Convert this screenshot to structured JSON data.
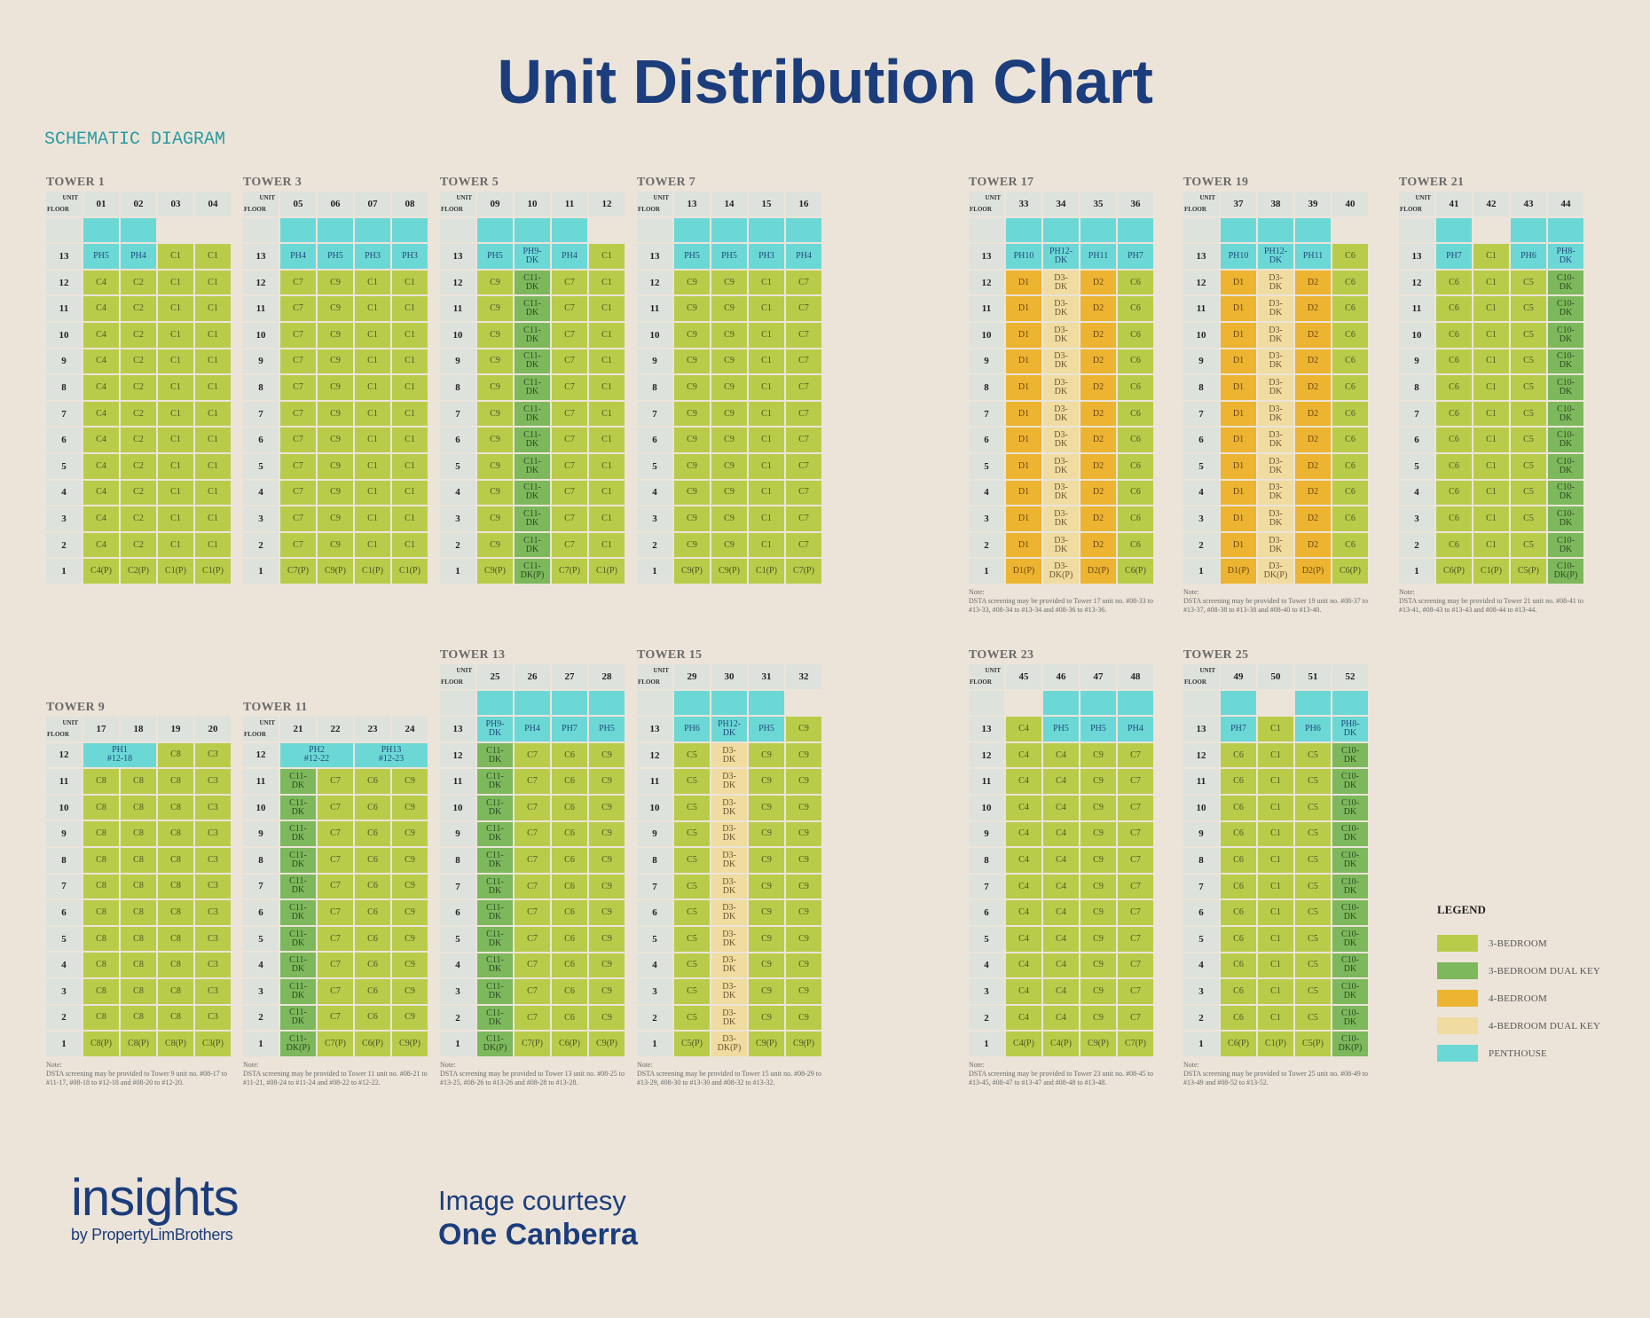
{
  "title": "Unit Distribution Chart",
  "subtitle": "SCHEMATIC DIAGRAM",
  "header_labels": {
    "unit": "UNIT",
    "floor": "FLOOR"
  },
  "types": {
    "3br": {
      "label": "3-BEDROOM",
      "color": "#b9cc4a"
    },
    "3dk": {
      "label": "3-BEDROOM DUAL KEY",
      "color": "#7db85c"
    },
    "4br": {
      "label": "4-BEDROOM",
      "color": "#ecb430"
    },
    "4dk": {
      "label": "4-BEDROOM DUAL KEY",
      "color": "#f0dca0"
    },
    "ph": {
      "label": "PENTHOUSE",
      "color": "#6cd8d6"
    }
  },
  "legend": {
    "title": "LEGEND",
    "items": [
      {
        "type": "3br",
        "label": "3-BEDROOM"
      },
      {
        "type": "3dk",
        "label": "3-BEDROOM DUAL KEY"
      },
      {
        "type": "4br",
        "label": "4-BEDROOM"
      },
      {
        "type": "4dk",
        "label": "4-BEDROOM DUAL KEY"
      },
      {
        "type": "ph",
        "label": "PENTHOUSE"
      }
    ]
  },
  "towers": [
    {
      "name": "TOWER 1",
      "units": [
        "01",
        "02",
        "03",
        "04"
      ],
      "top_floor": 13,
      "top": [
        {
          "label": "PH5",
          "type": "ph"
        },
        {
          "label": "PH4",
          "type": "ph"
        },
        {
          "label": "C1",
          "type": "3br"
        },
        {
          "label": "C1",
          "type": "3br"
        }
      ],
      "typical": [
        {
          "label": "C4",
          "type": "3br"
        },
        {
          "label": "C2",
          "type": "3br"
        },
        {
          "label": "C1",
          "type": "3br"
        },
        {
          "label": "C1",
          "type": "3br"
        }
      ],
      "ground": [
        {
          "label": "C4(P)",
          "type": "3br"
        },
        {
          "label": "C2(P)",
          "type": "3br"
        },
        {
          "label": "C1(P)",
          "type": "3br"
        },
        {
          "label": "C1(P)",
          "type": "3br"
        }
      ],
      "note": ""
    },
    {
      "name": "TOWER 3",
      "units": [
        "05",
        "06",
        "07",
        "08"
      ],
      "top_floor": 13,
      "top": [
        {
          "label": "PH4",
          "type": "ph"
        },
        {
          "label": "PH5",
          "type": "ph"
        },
        {
          "label": "PH3",
          "type": "ph"
        },
        {
          "label": "PH3",
          "type": "ph"
        }
      ],
      "typical": [
        {
          "label": "C7",
          "type": "3br"
        },
        {
          "label": "C9",
          "type": "3br"
        },
        {
          "label": "C1",
          "type": "3br"
        },
        {
          "label": "C1",
          "type": "3br"
        }
      ],
      "ground": [
        {
          "label": "C7(P)",
          "type": "3br"
        },
        {
          "label": "C9(P)",
          "type": "3br"
        },
        {
          "label": "C1(P)",
          "type": "3br"
        },
        {
          "label": "C1(P)",
          "type": "3br"
        }
      ],
      "note": ""
    },
    {
      "name": "TOWER 5",
      "units": [
        "09",
        "10",
        "11",
        "12"
      ],
      "top_floor": 13,
      "top": [
        {
          "label": "PH5",
          "type": "ph"
        },
        {
          "label": "PH9-DK",
          "type": "ph"
        },
        {
          "label": "PH4",
          "type": "ph"
        },
        {
          "label": "C1",
          "type": "3br"
        }
      ],
      "typical": [
        {
          "label": "C9",
          "type": "3br"
        },
        {
          "label": "C11-DK",
          "type": "3dk"
        },
        {
          "label": "C7",
          "type": "3br"
        },
        {
          "label": "C1",
          "type": "3br"
        }
      ],
      "ground": [
        {
          "label": "C9(P)",
          "type": "3br"
        },
        {
          "label": "C11-DK(P)",
          "type": "3dk"
        },
        {
          "label": "C7(P)",
          "type": "3br"
        },
        {
          "label": "C1(P)",
          "type": "3br"
        }
      ],
      "note": ""
    },
    {
      "name": "TOWER 7",
      "units": [
        "13",
        "14",
        "15",
        "16"
      ],
      "top_floor": 13,
      "top": [
        {
          "label": "PH5",
          "type": "ph"
        },
        {
          "label": "PH5",
          "type": "ph"
        },
        {
          "label": "PH3",
          "type": "ph"
        },
        {
          "label": "PH4",
          "type": "ph"
        }
      ],
      "typical": [
        {
          "label": "C9",
          "type": "3br"
        },
        {
          "label": "C9",
          "type": "3br"
        },
        {
          "label": "C1",
          "type": "3br"
        },
        {
          "label": "C7",
          "type": "3br"
        }
      ],
      "ground": [
        {
          "label": "C9(P)",
          "type": "3br"
        },
        {
          "label": "C9(P)",
          "type": "3br"
        },
        {
          "label": "C1(P)",
          "type": "3br"
        },
        {
          "label": "C7(P)",
          "type": "3br"
        }
      ],
      "note": ""
    },
    {
      "name": "TOWER 17",
      "units": [
        "33",
        "34",
        "35",
        "36"
      ],
      "top_floor": 13,
      "top": [
        {
          "label": "PH10",
          "type": "ph"
        },
        {
          "label": "PH12-DK",
          "type": "ph"
        },
        {
          "label": "PH11",
          "type": "ph"
        },
        {
          "label": "PH7",
          "type": "ph"
        }
      ],
      "typical": [
        {
          "label": "D1",
          "type": "4br"
        },
        {
          "label": "D3-DK",
          "type": "4dk"
        },
        {
          "label": "D2",
          "type": "4br"
        },
        {
          "label": "C6",
          "type": "3br"
        }
      ],
      "ground": [
        {
          "label": "D1(P)",
          "type": "4br"
        },
        {
          "label": "D3-DK(P)",
          "type": "4dk"
        },
        {
          "label": "D2(P)",
          "type": "4br"
        },
        {
          "label": "C6(P)",
          "type": "3br"
        }
      ],
      "note": "Note:\nDSTA screening may be provided to Tower 17 unit no. #08-33 to #13-33, #08-34 to #13-34 and #08-36 to #13-36."
    },
    {
      "name": "TOWER 19",
      "units": [
        "37",
        "38",
        "39",
        "40"
      ],
      "top_floor": 13,
      "top": [
        {
          "label": "PH10",
          "type": "ph"
        },
        {
          "label": "PH12-DK",
          "type": "ph"
        },
        {
          "label": "PH11",
          "type": "ph"
        },
        {
          "label": "C6",
          "type": "3br"
        }
      ],
      "typical": [
        {
          "label": "D1",
          "type": "4br"
        },
        {
          "label": "D3-DK",
          "type": "4dk"
        },
        {
          "label": "D2",
          "type": "4br"
        },
        {
          "label": "C6",
          "type": "3br"
        }
      ],
      "ground": [
        {
          "label": "D1(P)",
          "type": "4br"
        },
        {
          "label": "D3-DK(P)",
          "type": "4dk"
        },
        {
          "label": "D2(P)",
          "type": "4br"
        },
        {
          "label": "C6(P)",
          "type": "3br"
        }
      ],
      "note": "Note:\nDSTA screening may be provided to Tower 19 unit no. #08-37 to #13-37, #08-38 to #13-38 and #08-40 to #13-40."
    },
    {
      "name": "TOWER 21",
      "units": [
        "41",
        "42",
        "43",
        "44"
      ],
      "top_floor": 13,
      "top": [
        {
          "label": "PH7",
          "type": "ph"
        },
        {
          "label": "C1",
          "type": "3br"
        },
        {
          "label": "PH6",
          "type": "ph"
        },
        {
          "label": "PH8-DK",
          "type": "ph"
        }
      ],
      "typical": [
        {
          "label": "C6",
          "type": "3br"
        },
        {
          "label": "C1",
          "type": "3br"
        },
        {
          "label": "C5",
          "type": "3br"
        },
        {
          "label": "C10-DK",
          "type": "3dk"
        }
      ],
      "ground": [
        {
          "label": "C6(P)",
          "type": "3br"
        },
        {
          "label": "C1(P)",
          "type": "3br"
        },
        {
          "label": "C5(P)",
          "type": "3br"
        },
        {
          "label": "C10-DK(P)",
          "type": "3dk"
        }
      ],
      "note": "Note:\nDSTA screening may be provided to Tower 21 unit no. #08-41 to #13-41, #08-43 to #13-43 and #08-44 to #13-44."
    },
    {
      "name": "TOWER 9",
      "units": [
        "17",
        "18",
        "19",
        "20"
      ],
      "top_floor": 12,
      "top": [
        {
          "label": "PH1 #12-18",
          "type": "ph",
          "span": 2
        },
        {
          "label": "C8",
          "type": "3br"
        },
        {
          "label": "C3",
          "type": "3br"
        }
      ],
      "typical": [
        {
          "label": "C8",
          "type": "3br"
        },
        {
          "label": "C8",
          "type": "3br"
        },
        {
          "label": "C8",
          "type": "3br"
        },
        {
          "label": "C3",
          "type": "3br"
        }
      ],
      "ground": [
        {
          "label": "C8(P)",
          "type": "3br"
        },
        {
          "label": "C8(P)",
          "type": "3br"
        },
        {
          "label": "C8(P)",
          "type": "3br"
        },
        {
          "label": "C3(P)",
          "type": "3br"
        }
      ],
      "note": "Note:\nDSTA screening may be provided to Tower 9 unit no. #08-17 to #11-17, #08-18 to #12-18 and #08-20 to #12-20."
    },
    {
      "name": "TOWER 11",
      "units": [
        "21",
        "22",
        "23",
        "24"
      ],
      "top_floor": 12,
      "top": [
        {
          "label": "PH2 #12-22",
          "type": "ph",
          "span": 2
        },
        {
          "label": "PH13 #12-23",
          "type": "ph",
          "span": 2
        }
      ],
      "typical": [
        {
          "label": "C11-DK",
          "type": "3dk"
        },
        {
          "label": "C7",
          "type": "3br"
        },
        {
          "label": "C6",
          "type": "3br"
        },
        {
          "label": "C9",
          "type": "3br"
        }
      ],
      "ground": [
        {
          "label": "C11-DK(P)",
          "type": "3dk"
        },
        {
          "label": "C7(P)",
          "type": "3br"
        },
        {
          "label": "C6(P)",
          "type": "3br"
        },
        {
          "label": "C9(P)",
          "type": "3br"
        }
      ],
      "note": "Note:\nDSTA screening may be provided to Tower 11 unit no. #08-21 to #11-21, #08-24 to #11-24 and #08-22 to #12-22."
    },
    {
      "name": "TOWER 13",
      "units": [
        "25",
        "26",
        "27",
        "28"
      ],
      "top_floor": 13,
      "top": [
        {
          "label": "PH9-DK",
          "type": "ph"
        },
        {
          "label": "PH4",
          "type": "ph"
        },
        {
          "label": "PH7",
          "type": "ph"
        },
        {
          "label": "PH5",
          "type": "ph"
        }
      ],
      "typical": [
        {
          "label": "C11-DK",
          "type": "3dk"
        },
        {
          "label": "C7",
          "type": "3br"
        },
        {
          "label": "C6",
          "type": "3br"
        },
        {
          "label": "C9",
          "type": "3br"
        }
      ],
      "ground": [
        {
          "label": "C11-DK(P)",
          "type": "3dk"
        },
        {
          "label": "C7(P)",
          "type": "3br"
        },
        {
          "label": "C6(P)",
          "type": "3br"
        },
        {
          "label": "C9(P)",
          "type": "3br"
        }
      ],
      "note": "Note:\nDSTA screening may be provided to Tower 13 unit no. #08-25 to #13-25, #08-26 to #13-26 and #08-28 to #13-28."
    },
    {
      "name": "TOWER 15",
      "units": [
        "29",
        "30",
        "31",
        "32"
      ],
      "top_floor": 13,
      "top": [
        {
          "label": "PH6",
          "type": "ph"
        },
        {
          "label": "PH12-DK",
          "type": "ph"
        },
        {
          "label": "PH5",
          "type": "ph"
        },
        {
          "label": "C9",
          "type": "3br"
        }
      ],
      "typical": [
        {
          "label": "C5",
          "type": "3br"
        },
        {
          "label": "D3-DK",
          "type": "4dk"
        },
        {
          "label": "C9",
          "type": "3br"
        },
        {
          "label": "C9",
          "type": "3br"
        }
      ],
      "ground": [
        {
          "label": "C5(P)",
          "type": "3br"
        },
        {
          "label": "D3-DK(P)",
          "type": "4dk"
        },
        {
          "label": "C9(P)",
          "type": "3br"
        },
        {
          "label": "C9(P)",
          "type": "3br"
        }
      ],
      "note": "Note:\nDSTA screening may be provided to Tower 15 unit no. #08-29 to #13-29, #08-30 to #13-30 and #08-32 to #13-32."
    },
    {
      "name": "TOWER 23",
      "units": [
        "45",
        "46",
        "47",
        "48"
      ],
      "top_floor": 13,
      "top": [
        {
          "label": "C4",
          "type": "3br"
        },
        {
          "label": "PH5",
          "type": "ph"
        },
        {
          "label": "PH5",
          "type": "ph"
        },
        {
          "label": "PH4",
          "type": "ph"
        }
      ],
      "typical": [
        {
          "label": "C4",
          "type": "3br"
        },
        {
          "label": "C4",
          "type": "3br"
        },
        {
          "label": "C9",
          "type": "3br"
        },
        {
          "label": "C7",
          "type": "3br"
        }
      ],
      "ground": [
        {
          "label": "C4(P)",
          "type": "3br"
        },
        {
          "label": "C4(P)",
          "type": "3br"
        },
        {
          "label": "C9(P)",
          "type": "3br"
        },
        {
          "label": "C7(P)",
          "type": "3br"
        }
      ],
      "note": "Note:\nDSTA screening may be provided to Tower 23 unit no. #08-45 to #13-45, #08-47 to #13-47 and #08-48 to #13-48."
    },
    {
      "name": "TOWER 25",
      "units": [
        "49",
        "50",
        "51",
        "52"
      ],
      "top_floor": 13,
      "top": [
        {
          "label": "PH7",
          "type": "ph"
        },
        {
          "label": "C1",
          "type": "3br"
        },
        {
          "label": "PH6",
          "type": "ph"
        },
        {
          "label": "PH8-DK",
          "type": "ph"
        }
      ],
      "typical": [
        {
          "label": "C6",
          "type": "3br"
        },
        {
          "label": "C1",
          "type": "3br"
        },
        {
          "label": "C5",
          "type": "3br"
        },
        {
          "label": "C10-DK",
          "type": "3dk"
        }
      ],
      "ground": [
        {
          "label": "C6(P)",
          "type": "3br"
        },
        {
          "label": "C1(P)",
          "type": "3br"
        },
        {
          "label": "C5(P)",
          "type": "3br"
        },
        {
          "label": "C10-DK(P)",
          "type": "3dk"
        }
      ],
      "note": "Note:\nDSTA screening may be provided to Tower 25 unit no. #08-49 to #13-49 and #08-52 to #13-52."
    }
  ],
  "footer": {
    "logo_main": "insights",
    "logo_sub": "by PropertyLimBrothers",
    "courtesy_line1": "Image courtesy",
    "courtesy_line2": "One Canberra"
  }
}
